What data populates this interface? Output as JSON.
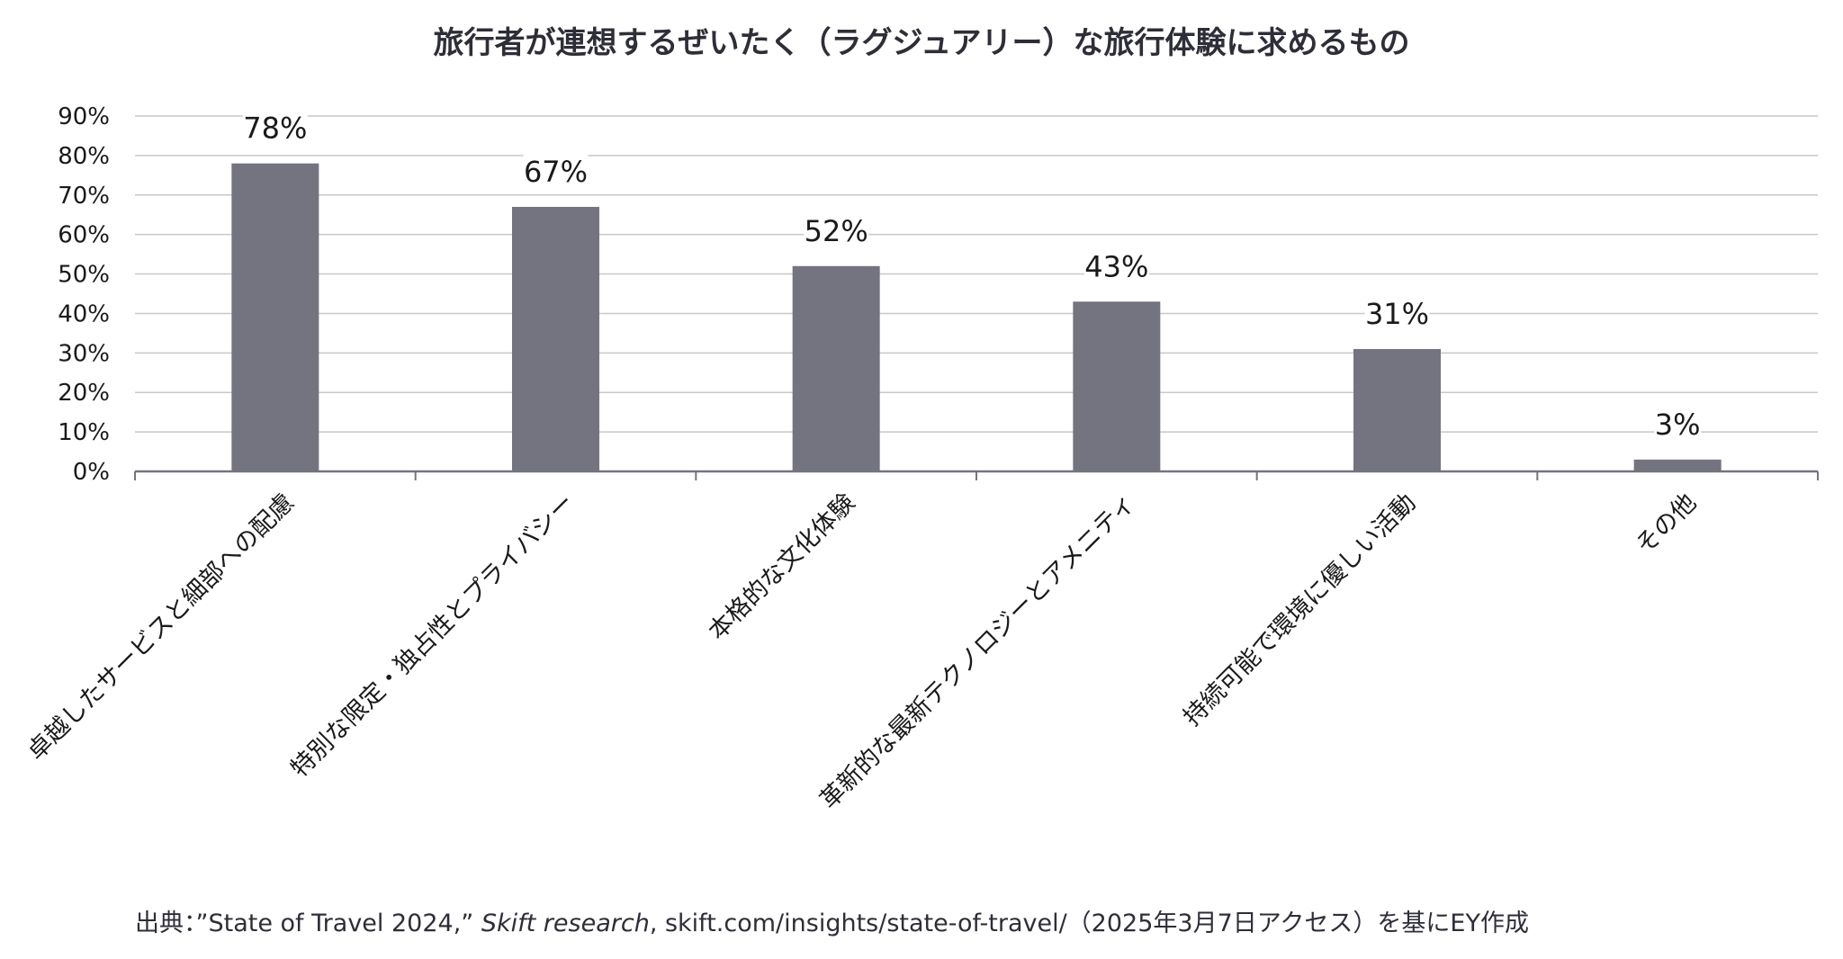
{
  "chart_data": {
    "type": "bar",
    "title": "旅行者が連想するぜいたく（ラグジュアリー）な旅行体験に求めるもの",
    "categories": [
      "卓越したサービスと細部への配慮",
      "特別な限定・独占性とプライバシー",
      "本格的な文化体験",
      "革新的な最新テクノロジーとアメニティ",
      "持続可能で環境に優しい活動",
      "その他"
    ],
    "values": [
      78,
      67,
      52,
      43,
      31,
      3
    ],
    "data_labels": [
      "78%",
      "67%",
      "52%",
      "43%",
      "31%",
      "3%"
    ],
    "ylim": [
      0,
      90
    ],
    "yticks": [
      "0%",
      "10%",
      "20%",
      "30%",
      "40%",
      "50%",
      "60%",
      "70%",
      "80%",
      "90%"
    ],
    "xlabel": "",
    "ylabel": "",
    "grid": true,
    "legend": "none",
    "bar_color": "#747480",
    "grid_color": "#c8c8cc",
    "axis_color": "#747480"
  },
  "source": {
    "prefix": "出典：”State of Travel 2024,” ",
    "italic": "Skift research",
    "suffix": ", skift.com/insights/state-of-travel/（2025年3月7日アクセス）を基にEY作成"
  }
}
